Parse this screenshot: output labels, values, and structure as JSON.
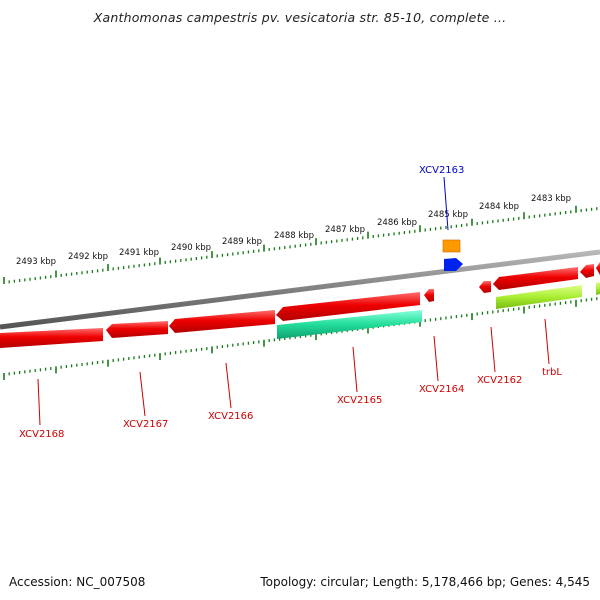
{
  "title": "Xanthomonas campestris pv. vesicatoria str. 85-10, complete ...",
  "footer": {
    "accession": "Accession: NC_007508",
    "summary": "Topology: circular; Length: 5,178,466 bp; Genes: 4,545"
  },
  "scale_ticks": [
    "2493 kbp",
    "2492 kbp",
    "2491 kbp",
    "2490 kbp",
    "2489 kbp",
    "2488 kbp",
    "2487 kbp",
    "2486 kbp",
    "2485 kbp",
    "2484 kbp",
    "2483 kbp"
  ],
  "gene_labels": [
    {
      "text": "XCV2163",
      "color": "#0000cc"
    },
    {
      "text": "XCV2168",
      "color": "#cc0000"
    },
    {
      "text": "XCV2167",
      "color": "#cc0000"
    },
    {
      "text": "XCV2166",
      "color": "#cc0000"
    },
    {
      "text": "XCV2165",
      "color": "#cc0000"
    },
    {
      "text": "XCV2164",
      "color": "#cc0000"
    },
    {
      "text": "XCV2162",
      "color": "#cc0000"
    },
    {
      "text": "trbL",
      "color": "#cc0000"
    }
  ],
  "colors": {
    "backbone": "#808080",
    "cds_red": "#ee0000",
    "cds_teal": "#22ddaa",
    "cds_lime": "#aaee33",
    "cds_orange": "#ff9900",
    "cds_blue": "#0022ee",
    "tick_green": "#1a7a1a"
  }
}
